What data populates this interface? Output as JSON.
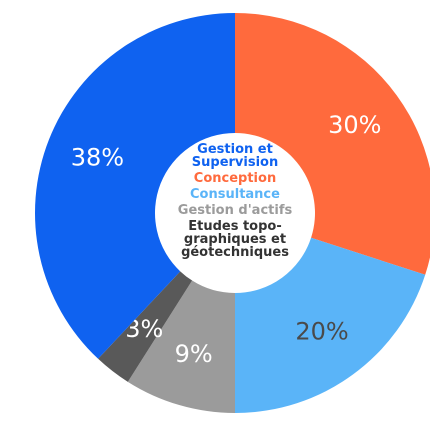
{
  "chart_data": {
    "type": "donut",
    "categories": [
      "Conception",
      "Consultance",
      "Gestion d'actifs",
      "Etudes topo­graphiques et géotechniques",
      "Gestion et Supervision"
    ],
    "values": [
      30,
      20,
      9,
      3,
      38
    ],
    "value_labels": [
      "30%",
      "20%",
      "9%",
      "3%",
      "38%"
    ],
    "colors": [
      "#ff6a3d",
      "#5ab4f8",
      "#9b9b9b",
      "#595959",
      "#0f62f0"
    ],
    "legend": "center"
  }
}
